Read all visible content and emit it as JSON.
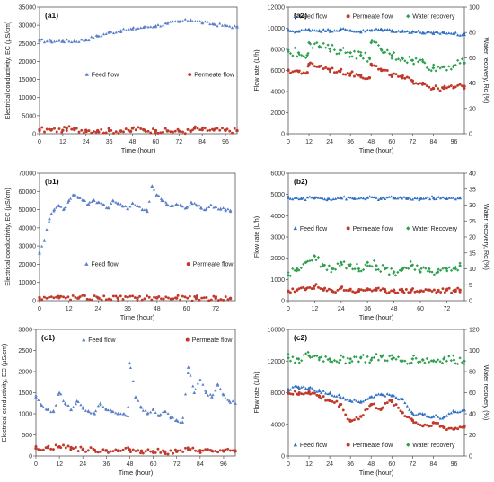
{
  "chart_data": [
    {
      "id": "a1",
      "type": "scatter",
      "panel_label": "(a1)",
      "xlabel": "Time (hour)",
      "ylabel": "Electrical conductivity, EC (µS/cm)",
      "xlim": [
        0,
        102
      ],
      "ylim": [
        0,
        35000
      ],
      "xticks": [
        0,
        12,
        24,
        36,
        48,
        60,
        72,
        84,
        96
      ],
      "yticks": [
        0,
        5000,
        10000,
        15000,
        20000,
        25000,
        30000,
        35000
      ],
      "legend_placement": "center",
      "series": [
        {
          "name": "Feed flow",
          "axis": "left",
          "color": "#5b7fc9",
          "marker": "triangle",
          "x": [
            0,
            6,
            12,
            18,
            24,
            30,
            36,
            42,
            48,
            54,
            60,
            66,
            72,
            78,
            84,
            90,
            96,
            102
          ],
          "y": [
            25800,
            25600,
            25700,
            25600,
            26000,
            27000,
            28000,
            28500,
            29000,
            29500,
            29800,
            30500,
            31000,
            31500,
            30800,
            30300,
            29900,
            29500
          ]
        },
        {
          "name": "Permeate flow",
          "axis": "left",
          "color": "#c0392b",
          "marker": "circle",
          "x": [
            0,
            6,
            12,
            14,
            18,
            24,
            30,
            36,
            42,
            47,
            48,
            54,
            60,
            66,
            72,
            78,
            80,
            84,
            90,
            96,
            102
          ],
          "y": [
            1100,
            1000,
            950,
            1500,
            1100,
            950,
            850,
            800,
            750,
            650,
            1500,
            1000,
            850,
            750,
            700,
            650,
            1500,
            1100,
            1000,
            900,
            850
          ]
        }
      ]
    },
    {
      "id": "a2",
      "type": "scatter",
      "panel_label": "(a2)",
      "xlabel": "Time (hour)",
      "ylabel": "Flow rate (L/h)",
      "y2label": "Water recovery, Rc (%)",
      "xlim": [
        0,
        102
      ],
      "ylim": [
        0,
        12000
      ],
      "y2lim": [
        0,
        100
      ],
      "xticks": [
        0,
        12,
        24,
        36,
        48,
        60,
        72,
        84,
        96
      ],
      "yticks": [
        0,
        2000,
        4000,
        6000,
        8000,
        10000,
        12000
      ],
      "y2ticks": [
        0,
        20,
        40,
        60,
        80,
        100
      ],
      "legend_placement": "top",
      "series": [
        {
          "name": "Feed flow",
          "axis": "left",
          "color": "#2f6fc2",
          "marker": "triangle",
          "x": [
            0,
            6,
            12,
            18,
            24,
            30,
            36,
            42,
            48,
            54,
            60,
            66,
            72,
            78,
            84,
            90,
            96,
            102
          ],
          "y": [
            9800,
            9700,
            9900,
            9800,
            9800,
            9900,
            9800,
            9700,
            9800,
            9900,
            9800,
            9700,
            9700,
            9600,
            9500,
            9600,
            9500,
            9400
          ]
        },
        {
          "name": "Permeate flow",
          "axis": "left",
          "color": "#c0392b",
          "marker": "circle",
          "x": [
            0,
            6,
            11,
            12,
            18,
            24,
            30,
            36,
            42,
            47,
            48,
            54,
            60,
            66,
            72,
            78,
            84,
            90,
            96,
            102
          ],
          "y": [
            6000,
            5900,
            5800,
            6600,
            6400,
            6100,
            5900,
            5700,
            5500,
            5300,
            6600,
            6000,
            5600,
            5300,
            5000,
            4800,
            4300,
            4300,
            4400,
            4500
          ]
        },
        {
          "name": "Water recovery",
          "axis": "right",
          "color": "#2e9e4f",
          "marker": "diamond",
          "x": [
            0,
            6,
            11,
            12,
            18,
            24,
            30,
            36,
            42,
            47,
            48,
            54,
            60,
            66,
            72,
            78,
            84,
            90,
            96,
            102
          ],
          "y": [
            65,
            64,
            62,
            72,
            69,
            67,
            66,
            64,
            62,
            60,
            72,
            66,
            62,
            60,
            58,
            57,
            52,
            53,
            54,
            56
          ]
        }
      ]
    },
    {
      "id": "b1",
      "type": "scatter",
      "panel_label": "(b1)",
      "xlabel": "Time (hour)",
      "ylabel": "Electrical conductivity, EC (µS/cm)",
      "xlim": [
        0,
        80
      ],
      "ylim": [
        0,
        70000
      ],
      "xticks": [
        0,
        12,
        24,
        36,
        48,
        60,
        72
      ],
      "yticks": [
        0,
        10000,
        20000,
        30000,
        40000,
        50000,
        60000,
        70000
      ],
      "legend_placement": "center",
      "series": [
        {
          "name": "Feed flow",
          "axis": "left",
          "color": "#5b7fc9",
          "marker": "triangle",
          "x": [
            0,
            2,
            4,
            6,
            8,
            10,
            12,
            14,
            16,
            18,
            20,
            22,
            24,
            26,
            28,
            30,
            32,
            34,
            36,
            38,
            40,
            42,
            44,
            46,
            48,
            50,
            52,
            54,
            56,
            58,
            60,
            62,
            64,
            66,
            68,
            70,
            72,
            74,
            76,
            78
          ],
          "y": [
            26000,
            33000,
            45000,
            50000,
            52000,
            50500,
            55000,
            58000,
            56500,
            55000,
            53000,
            55500,
            54000,
            52500,
            51000,
            55000,
            53500,
            52000,
            50500,
            53500,
            52000,
            50000,
            49000,
            63000,
            58000,
            55000,
            53000,
            52000,
            53000,
            52000,
            51000,
            54000,
            52500,
            51000,
            50000,
            52500,
            51500,
            50500,
            50000,
            49500
          ]
        },
        {
          "name": "Permeate flow",
          "axis": "left",
          "color": "#c0392b",
          "marker": "circle",
          "x": [
            0,
            8,
            16,
            24,
            32,
            40,
            48,
            56,
            64,
            72,
            78
          ],
          "y": [
            1700,
            1600,
            1500,
            1500,
            1400,
            1400,
            1500,
            1400,
            1300,
            1300,
            1200
          ]
        }
      ]
    },
    {
      "id": "b2",
      "type": "scatter",
      "panel_label": "(b2)",
      "xlabel": "Time (hour)",
      "ylabel": "Flow rate (L/h)",
      "y2label": "Water recovery, Rc (%)",
      "xlim": [
        0,
        80
      ],
      "ylim": [
        0,
        6000
      ],
      "y2lim": [
        0,
        40
      ],
      "xticks": [
        0,
        12,
        24,
        36,
        48,
        60,
        72
      ],
      "yticks": [
        0,
        1000,
        2000,
        3000,
        4000,
        5000,
        6000
      ],
      "y2ticks": [
        0,
        5,
        10,
        15,
        20,
        25,
        30,
        35,
        40
      ],
      "legend_placement": "center",
      "series": [
        {
          "name": "Feed flow",
          "axis": "left",
          "color": "#2f6fc2",
          "marker": "triangle",
          "x": [
            0,
            6,
            12,
            18,
            24,
            30,
            36,
            42,
            48,
            54,
            60,
            66,
            72,
            78
          ],
          "y": [
            4850,
            4800,
            4850,
            4800,
            4850,
            4800,
            4850,
            4800,
            4850,
            4800,
            4800,
            4850,
            4800,
            4850
          ]
        },
        {
          "name": "Permeate flow",
          "axis": "left",
          "color": "#c0392b",
          "marker": "circle",
          "x": [
            0,
            4,
            8,
            12,
            16,
            20,
            24,
            28,
            32,
            36,
            40,
            44,
            48,
            52,
            56,
            60,
            64,
            68,
            72,
            76,
            78
          ],
          "y": [
            450,
            500,
            550,
            700,
            500,
            450,
            600,
            500,
            450,
            550,
            500,
            450,
            500,
            450,
            500,
            450,
            500,
            450,
            500,
            450,
            500
          ]
        },
        {
          "name": "Water Recovery",
          "axis": "right",
          "color": "#2e9e4f",
          "marker": "diamond",
          "x": [
            0,
            4,
            8,
            12,
            16,
            20,
            24,
            28,
            32,
            36,
            40,
            44,
            48,
            52,
            56,
            60,
            64,
            68,
            72,
            76,
            78
          ],
          "y": [
            8,
            10,
            12,
            14,
            11,
            10,
            12,
            11,
            10,
            12,
            11,
            10,
            9,
            10,
            11,
            9,
            10,
            9,
            10,
            10,
            11
          ]
        }
      ]
    },
    {
      "id": "c1",
      "type": "scatter",
      "panel_label": "(c1)",
      "xlabel": "Time (hour)",
      "ylabel": "Electrical conductivity, EC (µS/cm)",
      "xlim": [
        0,
        102
      ],
      "ylim": [
        0,
        3000
      ],
      "xticks": [
        0,
        12,
        24,
        36,
        48,
        60,
        72,
        84,
        96
      ],
      "yticks": [
        0,
        500,
        1000,
        1500,
        2000,
        2500,
        3000
      ],
      "legend_placement": "top",
      "series": [
        {
          "name": "Feed flow",
          "axis": "left",
          "color": "#5b7fc9",
          "marker": "triangle",
          "x": [
            0,
            3,
            6,
            9,
            12,
            15,
            18,
            21,
            24,
            27,
            30,
            33,
            36,
            39,
            42,
            45,
            47,
            48,
            51,
            54,
            57,
            60,
            63,
            66,
            69,
            72,
            75,
            78,
            81,
            84,
            87,
            90,
            93,
            96,
            99,
            102
          ],
          "y": [
            1400,
            1200,
            1100,
            1050,
            1500,
            1250,
            1100,
            1300,
            1150,
            1050,
            1000,
            1250,
            1100,
            1050,
            1000,
            1000,
            950,
            2200,
            1400,
            1150,
            1000,
            1100,
            950,
            1050,
            900,
            850,
            800,
            2100,
            1500,
            1800,
            1500,
            1400,
            1700,
            1450,
            1300,
            1250
          ]
        },
        {
          "name": "Permeate flow",
          "axis": "left",
          "color": "#c0392b",
          "marker": "circle",
          "x": [
            0,
            6,
            12,
            18,
            24,
            30,
            36,
            42,
            48,
            54,
            60,
            66,
            72,
            78,
            84,
            90,
            96,
            102
          ],
          "y": [
            180,
            200,
            220,
            200,
            150,
            140,
            130,
            120,
            150,
            120,
            110,
            100,
            100,
            150,
            130,
            120,
            110,
            110
          ]
        }
      ]
    },
    {
      "id": "c2",
      "type": "scatter",
      "panel_label": "(c2)",
      "xlabel": "Time (hour)",
      "ylabel": "Flow rate (L/h)",
      "y2label": "Water recovery (%)",
      "xlim": [
        0,
        102
      ],
      "ylim": [
        0,
        16000
      ],
      "y2lim": [
        0,
        120
      ],
      "xticks": [
        0,
        12,
        24,
        36,
        48,
        60,
        72,
        84,
        96
      ],
      "yticks": [
        0,
        4000,
        8000,
        12000,
        16000
      ],
      "y2ticks": [
        0,
        20,
        40,
        60,
        80,
        100,
        120
      ],
      "legend_placement": "bottom",
      "series": [
        {
          "name": "Feed flow",
          "axis": "left",
          "color": "#2f6fc2",
          "marker": "triangle",
          "x": [
            0,
            6,
            12,
            18,
            24,
            30,
            36,
            42,
            48,
            54,
            60,
            66,
            72,
            78,
            84,
            90,
            96,
            102
          ],
          "y": [
            8500,
            8700,
            8600,
            8200,
            7900,
            7500,
            7000,
            6800,
            7500,
            7800,
            7600,
            7200,
            5400,
            5200,
            5000,
            4900,
            5600,
            5800
          ]
        },
        {
          "name": "Permeate flow",
          "axis": "left",
          "color": "#c0392b",
          "marker": "circle",
          "x": [
            0,
            6,
            12,
            18,
            24,
            30,
            36,
            42,
            48,
            54,
            60,
            66,
            72,
            78,
            84,
            90,
            96,
            102
          ],
          "y": [
            8000,
            7800,
            8100,
            7500,
            7000,
            6500,
            4400,
            5000,
            6500,
            6000,
            7000,
            5500,
            4500,
            3800,
            4200,
            3600,
            3400,
            3800
          ]
        },
        {
          "name": "Water recovery",
          "axis": "right",
          "color": "#2e9e4f",
          "marker": "diamond",
          "x": [
            0,
            6,
            12,
            18,
            24,
            30,
            36,
            42,
            48,
            54,
            60,
            66,
            72,
            78,
            84,
            90,
            96,
            102
          ],
          "y": [
            93,
            92,
            95,
            93,
            92,
            91,
            92,
            93,
            91,
            94,
            92,
            90,
            92,
            91,
            90,
            92,
            91,
            90
          ]
        }
      ]
    }
  ]
}
